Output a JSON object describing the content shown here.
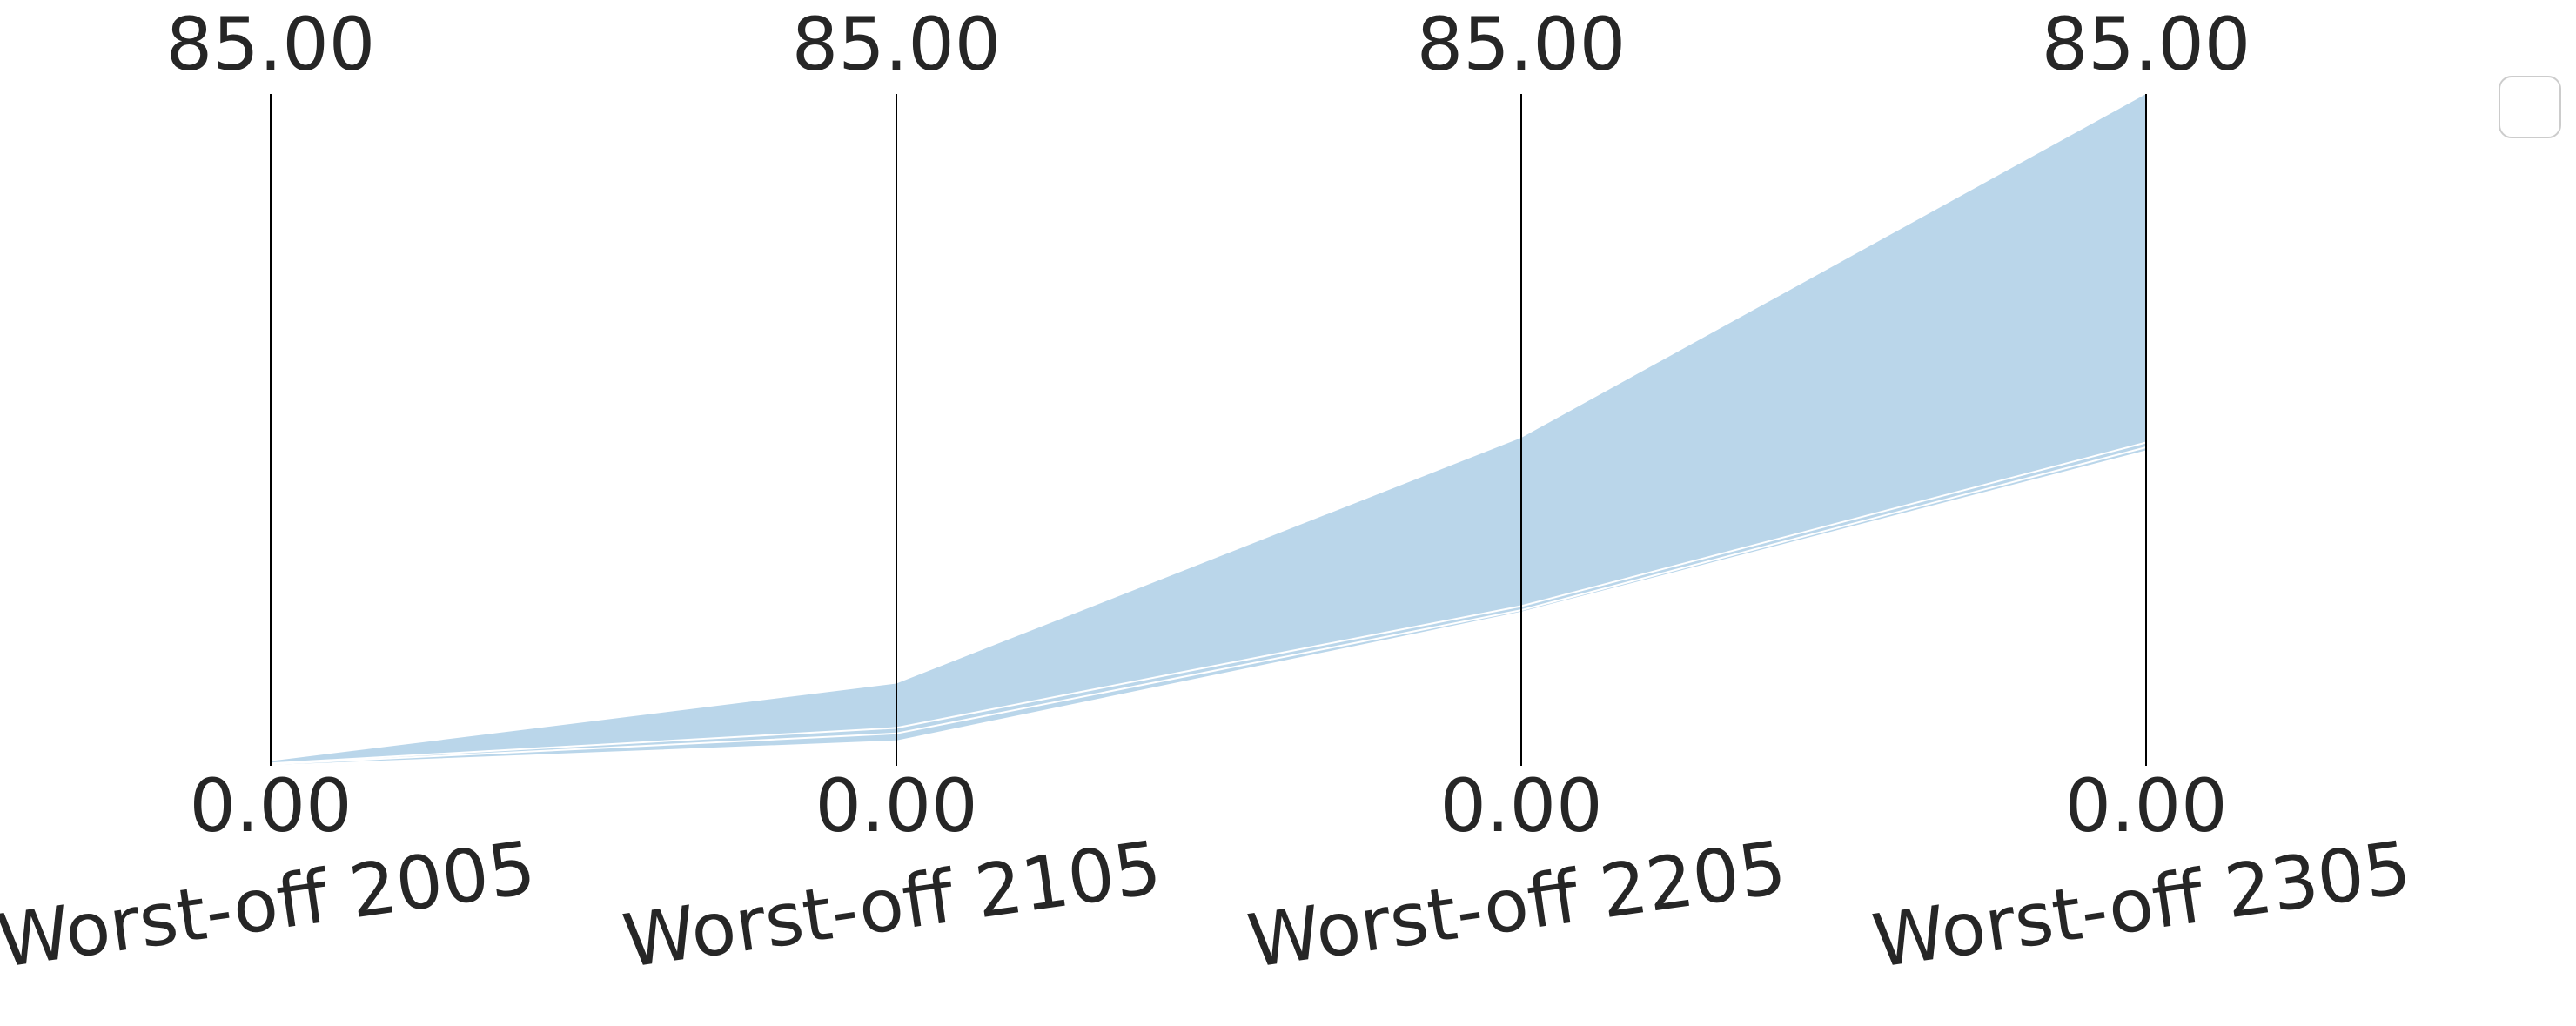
{
  "chart_data": {
    "type": "parallel-coordinates",
    "axes": [
      {
        "label": "Worst-off 2005",
        "min_label": "0.00",
        "max_label": "85.00",
        "range": [
          0,
          85
        ]
      },
      {
        "label": "Worst-off 2105",
        "min_label": "0.00",
        "max_label": "85.00",
        "range": [
          0,
          85
        ]
      },
      {
        "label": "Worst-off 2205",
        "min_label": "0.00",
        "max_label": "85.00",
        "range": [
          0,
          85
        ]
      },
      {
        "label": "Worst-off 2305",
        "min_label": "0.00",
        "max_label": "85.00",
        "range": [
          0,
          85
        ]
      }
    ],
    "band": {
      "upper": [
        0.6,
        10.4,
        41.5,
        85.0
      ],
      "lower": [
        0.0,
        3.1,
        19.4,
        39.8
      ]
    },
    "traces": [
      [
        0.0,
        3.1,
        19.4,
        39.8
      ],
      [
        0.2,
        4.1,
        19.7,
        40.3
      ],
      [
        0.3,
        4.8,
        20.2,
        40.9
      ]
    ],
    "colors": {
      "band": "#bad6ea",
      "trace": "#ffffff",
      "axis": "#000000",
      "text": "#262626"
    },
    "legend": {
      "placement": "top-right",
      "entries": []
    }
  }
}
